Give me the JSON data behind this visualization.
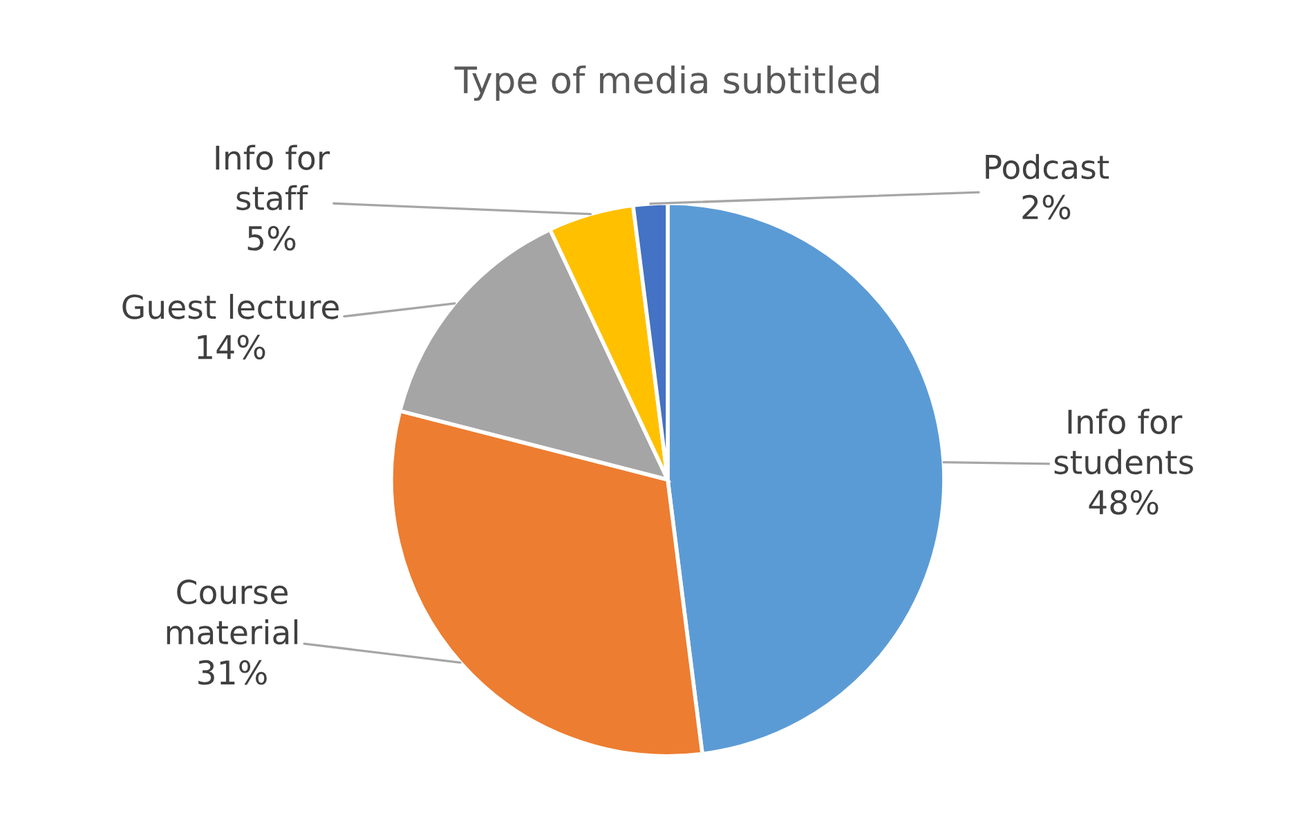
{
  "chart_data": {
    "type": "pie",
    "title": "Type of media subtitled",
    "categories": [
      "Info for students",
      "Course material",
      "Guest lecture",
      "Info for staff",
      "Podcast"
    ],
    "values": [
      48,
      31,
      14,
      5,
      2
    ],
    "colors": [
      "#5b9bd5",
      "#ed7d31",
      "#a5a5a5",
      "#ffc000",
      "#4472c4"
    ],
    "value_labels": [
      "48%",
      "31%",
      "14%",
      "5%",
      "2%"
    ]
  }
}
